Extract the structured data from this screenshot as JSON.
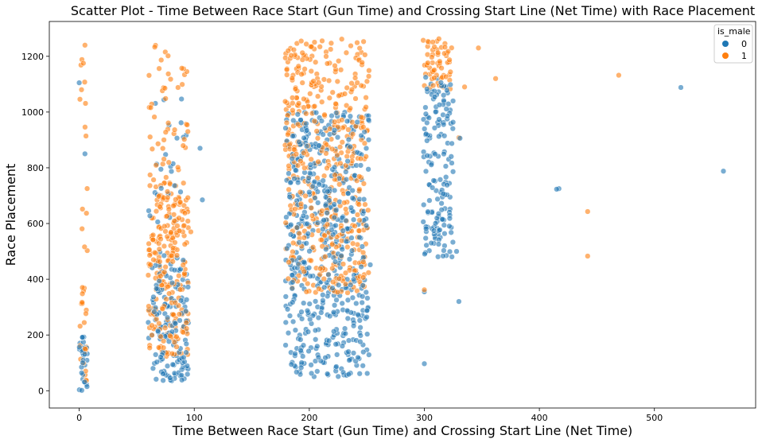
{
  "chart_data": {
    "type": "scatter",
    "title": "Scatter Plot - Time Between Race Start (Gun Time) and Crossing Start Line (Net Time) with Race Placement",
    "xlabel": "Time Between Race Start (Gun Time) and Crossing Start Line (Net Time)",
    "ylabel": "Race Placement",
    "xlim": [
      -26,
      588
    ],
    "ylim": [
      -62,
      1325
    ],
    "xticks": [
      0,
      100,
      200,
      300,
      400,
      500
    ],
    "yticks": [
      0,
      200,
      400,
      600,
      800,
      1000,
      1200
    ],
    "grid": false,
    "legend": {
      "title": "is_male",
      "position": "top-right",
      "entries": [
        {
          "label": "0",
          "color": "#1f77b4"
        },
        {
          "label": "1",
          "color": "#ff7f0e"
        }
      ]
    },
    "clusters": [
      {
        "series": "0",
        "color": "#1f77b4",
        "x": [
          0,
          7
        ],
        "y": [
          0,
          200
        ],
        "count": 30
      },
      {
        "series": "1",
        "color": "#ff7f0e",
        "x": [
          0,
          7
        ],
        "y": [
          0,
          400
        ],
        "count": 22
      },
      {
        "series": "1",
        "color": "#ff7f0e",
        "x": [
          0,
          7
        ],
        "y": [
          500,
          1240
        ],
        "count": 14
      },
      {
        "series": "0",
        "color": "#1f77b4",
        "x": [
          60,
          95
        ],
        "y": [
          35,
          500
        ],
        "count": 150
      },
      {
        "series": "1",
        "color": "#ff7f0e",
        "x": [
          60,
          95
        ],
        "y": [
          120,
          700
        ],
        "count": 230
      },
      {
        "series": "1",
        "color": "#ff7f0e",
        "x": [
          60,
          95
        ],
        "y": [
          700,
          1260
        ],
        "count": 60
      },
      {
        "series": "0",
        "color": "#1f77b4",
        "x": [
          60,
          95
        ],
        "y": [
          600,
          1050
        ],
        "count": 25
      },
      {
        "series": "0",
        "color": "#1f77b4",
        "x": [
          179,
          252
        ],
        "y": [
          50,
          1000
        ],
        "count": 560
      },
      {
        "series": "1",
        "color": "#ff7f0e",
        "x": [
          179,
          252
        ],
        "y": [
          350,
          1265
        ],
        "count": 480
      },
      {
        "series": "0",
        "color": "#1f77b4",
        "x": [
          299,
          325
        ],
        "y": [
          480,
          1130
        ],
        "count": 160
      },
      {
        "series": "1",
        "color": "#ff7f0e",
        "x": [
          299,
          325
        ],
        "y": [
          1080,
          1265
        ],
        "count": 60
      }
    ],
    "points": [
      {
        "series": "0",
        "x": 0,
        "y": 1105
      },
      {
        "series": "1",
        "x": 2,
        "y": 1080
      },
      {
        "series": "1",
        "x": 5,
        "y": 1240
      },
      {
        "series": "0",
        "x": 5,
        "y": 850
      },
      {
        "series": "0",
        "x": 105,
        "y": 870
      },
      {
        "series": "0",
        "x": 107,
        "y": 685
      },
      {
        "series": "1",
        "x": 97,
        "y": 570
      },
      {
        "series": "0",
        "x": 300,
        "y": 97
      },
      {
        "series": "0",
        "x": 300,
        "y": 355
      },
      {
        "series": "0",
        "x": 330,
        "y": 320
      },
      {
        "series": "0",
        "x": 328,
        "y": 500
      },
      {
        "series": "1",
        "x": 300,
        "y": 362
      },
      {
        "series": "1",
        "x": 330,
        "y": 908
      },
      {
        "series": "0",
        "x": 331,
        "y": 906
      },
      {
        "series": "1",
        "x": 335,
        "y": 1090
      },
      {
        "series": "1",
        "x": 347,
        "y": 1230
      },
      {
        "series": "1",
        "x": 362,
        "y": 1120
      },
      {
        "series": "0",
        "x": 415,
        "y": 723
      },
      {
        "series": "0",
        "x": 417,
        "y": 725
      },
      {
        "series": "1",
        "x": 442,
        "y": 643
      },
      {
        "series": "1",
        "x": 442,
        "y": 483
      },
      {
        "series": "1",
        "x": 469,
        "y": 1132
      },
      {
        "series": "0",
        "x": 523,
        "y": 1088
      },
      {
        "series": "0",
        "x": 560,
        "y": 788
      },
      {
        "series": "0",
        "x": 253,
        "y": 452
      }
    ]
  }
}
